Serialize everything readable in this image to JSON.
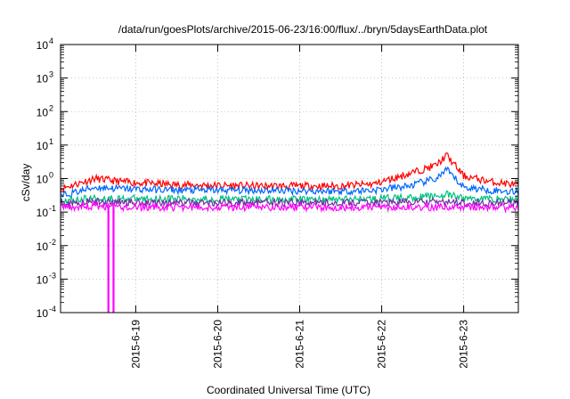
{
  "chart_data": {
    "type": "line",
    "title": "/data/run/goesPlots/archive/2015-06-23/16:00/flux/../bryn/5daysEarthData.plot",
    "xlabel": "Coordinated Universal Time (UTC)",
    "ylabel": "cSv/day",
    "yscale": "log",
    "ylim": [
      0.0001,
      10000
    ],
    "xlim": [
      "2015-06-18 02:00",
      "2015-06-23 16:00"
    ],
    "grid": true,
    "x_ticks": [
      "2015-6-19",
      "2015-6-20",
      "2015-6-21",
      "2015-6-22",
      "2015-6-23"
    ],
    "y_ticks": [
      {
        "base": "10",
        "exp": "-4"
      },
      {
        "base": "10",
        "exp": "-3"
      },
      {
        "base": "10",
        "exp": "-2"
      },
      {
        "base": "10",
        "exp": "-1"
      },
      {
        "base": "10",
        "exp": "0"
      },
      {
        "base": "10",
        "exp": "1"
      },
      {
        "base": "10",
        "exp": "2"
      },
      {
        "base": "10",
        "exp": "3"
      },
      {
        "base": "10",
        "exp": "4"
      }
    ],
    "x": [
      "2015-06-18 02:00",
      "2015-06-18 12:00",
      "2015-06-18 20:00",
      "2015-06-19 12:00",
      "2015-06-20 12:00",
      "2015-06-21 12:00",
      "2015-06-21 22:00",
      "2015-06-22 08:00",
      "2015-06-22 16:00",
      "2015-06-22 19:00",
      "2015-06-23 00:00",
      "2015-06-23 08:00",
      "2015-06-23 16:00"
    ],
    "series": [
      {
        "color": "#ff0000",
        "values": [
          0.5,
          1.0,
          0.8,
          0.65,
          0.6,
          0.6,
          0.7,
          1.4,
          2.5,
          5.0,
          1.2,
          0.8,
          0.65
        ]
      },
      {
        "color": "#0066ff",
        "values": [
          0.3,
          0.55,
          0.5,
          0.45,
          0.45,
          0.42,
          0.45,
          0.6,
          1.0,
          1.8,
          0.55,
          0.45,
          0.4
        ]
      },
      {
        "color": "#00c080",
        "values": [
          0.22,
          0.26,
          0.25,
          0.25,
          0.24,
          0.24,
          0.25,
          0.27,
          0.3,
          0.33,
          0.26,
          0.25,
          0.24
        ]
      },
      {
        "color": "#7030a0",
        "values": [
          0.19,
          0.2,
          0.2,
          0.19,
          0.19,
          0.19,
          0.19,
          0.2,
          0.2,
          0.2,
          0.19,
          0.19,
          0.18
        ]
      },
      {
        "color": "#ff00ff",
        "values": [
          0.14,
          0.15,
          0.14,
          0.14,
          0.14,
          0.14,
          0.14,
          0.14,
          0.14,
          0.14,
          0.14,
          0.14,
          0.13
        ]
      }
    ],
    "dropouts": [
      {
        "series": 4,
        "x": "2015-06-18 16:00",
        "value": 0.0001
      },
      {
        "series": 4,
        "x": "2015-06-18 17:30",
        "value": 0.0001
      }
    ]
  }
}
